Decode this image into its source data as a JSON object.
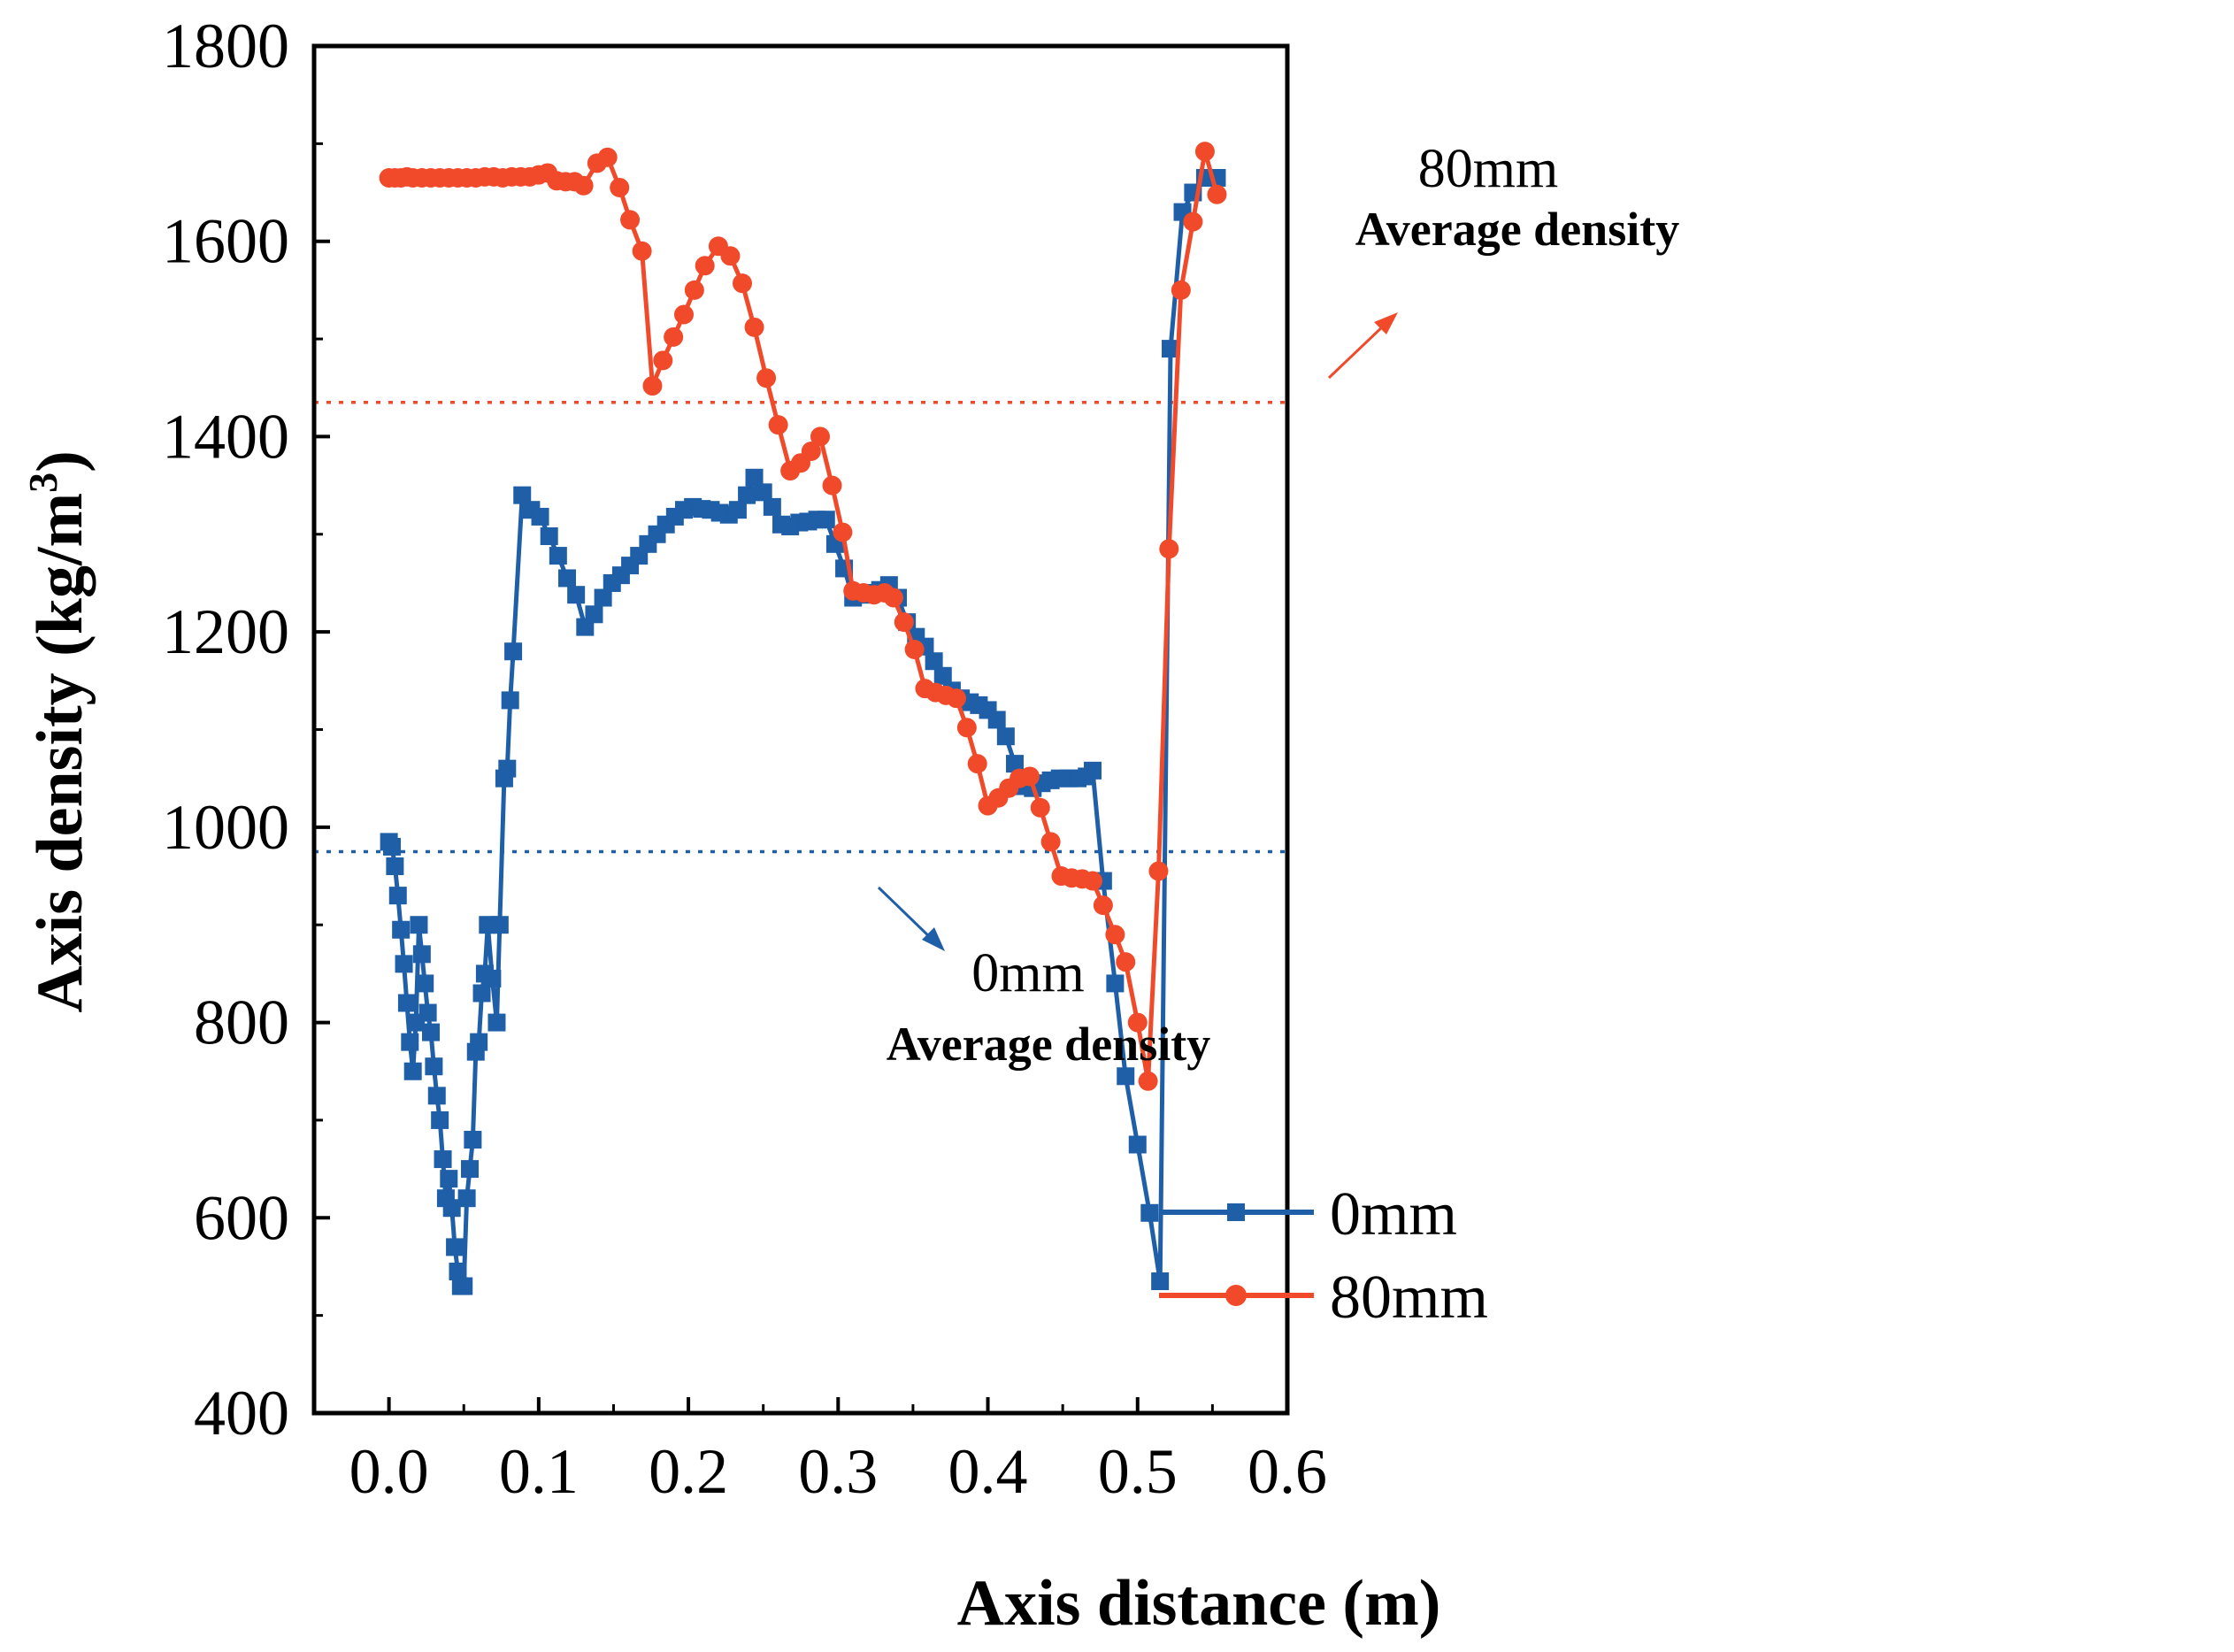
{
  "chart_data": {
    "type": "line",
    "xlabel": "Axis distance (m)",
    "ylabel_main": "Axis density (kg/m",
    "ylabel_sup": "3",
    "ylabel_close": ")",
    "xlim": [
      -0.05,
      0.6
    ],
    "ylim": [
      400,
      1800
    ],
    "x_ticks": [
      0.0,
      0.1,
      0.2,
      0.3,
      0.4,
      0.5,
      0.6
    ],
    "x_tick_labels": [
      "0.0",
      "0.1",
      "0.2",
      "0.3",
      "0.4",
      "0.5",
      "0.6"
    ],
    "y_ticks": [
      400,
      600,
      800,
      1000,
      1200,
      1400,
      1600,
      1800
    ],
    "y_tick_labels": [
      "400",
      "600",
      "800",
      "1000",
      "1200",
      "1400",
      "1600",
      "1800"
    ],
    "legend_position": "bottom-center",
    "series": [
      {
        "name": "0mm",
        "color": "#1f5fa8",
        "marker": "square",
        "points": [
          [
            0.0,
            985
          ],
          [
            0.002,
            980
          ],
          [
            0.004,
            960
          ],
          [
            0.006,
            930
          ],
          [
            0.008,
            895
          ],
          [
            0.01,
            860
          ],
          [
            0.012,
            820
          ],
          [
            0.014,
            780
          ],
          [
            0.016,
            750
          ],
          [
            0.018,
            800
          ],
          [
            0.02,
            900
          ],
          [
            0.022,
            870
          ],
          [
            0.024,
            840
          ],
          [
            0.026,
            810
          ],
          [
            0.028,
            790
          ],
          [
            0.03,
            755
          ],
          [
            0.032,
            725
          ],
          [
            0.034,
            700
          ],
          [
            0.036,
            660
          ],
          [
            0.038,
            620
          ],
          [
            0.04,
            640
          ],
          [
            0.042,
            610
          ],
          [
            0.044,
            570
          ],
          [
            0.046,
            545
          ],
          [
            0.048,
            530
          ],
          [
            0.05,
            530
          ],
          [
            0.052,
            620
          ],
          [
            0.054,
            650
          ],
          [
            0.056,
            680
          ],
          [
            0.058,
            770
          ],
          [
            0.06,
            780
          ],
          [
            0.062,
            830
          ],
          [
            0.064,
            850
          ],
          [
            0.066,
            900
          ],
          [
            0.069,
            845
          ],
          [
            0.072,
            800
          ],
          [
            0.074,
            900
          ],
          [
            0.077,
            1050
          ],
          [
            0.079,
            1060
          ],
          [
            0.081,
            1130
          ],
          [
            0.083,
            1180
          ],
          [
            0.089,
            1340
          ],
          [
            0.095,
            1325
          ],
          [
            0.101,
            1318
          ],
          [
            0.107,
            1298
          ],
          [
            0.113,
            1278
          ],
          [
            0.119,
            1255
          ],
          [
            0.125,
            1238
          ],
          [
            0.131,
            1205
          ],
          [
            0.137,
            1218
          ],
          [
            0.143,
            1235
          ],
          [
            0.149,
            1250
          ],
          [
            0.155,
            1258
          ],
          [
            0.161,
            1268
          ],
          [
            0.167,
            1278
          ],
          [
            0.173,
            1290
          ],
          [
            0.179,
            1300
          ],
          [
            0.185,
            1310
          ],
          [
            0.191,
            1318
          ],
          [
            0.197,
            1325
          ],
          [
            0.203,
            1328
          ],
          [
            0.209,
            1326
          ],
          [
            0.215,
            1325
          ],
          [
            0.221,
            1322
          ],
          [
            0.227,
            1320
          ],
          [
            0.233,
            1325
          ],
          [
            0.239,
            1340
          ],
          [
            0.244,
            1358
          ],
          [
            0.25,
            1343
          ],
          [
            0.256,
            1328
          ],
          [
            0.262,
            1310
          ],
          [
            0.268,
            1308
          ],
          [
            0.274,
            1312
          ],
          [
            0.28,
            1313
          ],
          [
            0.286,
            1315
          ],
          [
            0.292,
            1315
          ],
          [
            0.298,
            1290
          ],
          [
            0.304,
            1265
          ],
          [
            0.31,
            1235
          ],
          [
            0.316,
            1238
          ],
          [
            0.322,
            1240
          ],
          [
            0.328,
            1243
          ],
          [
            0.334,
            1248
          ],
          [
            0.34,
            1235
          ],
          [
            0.346,
            1210
          ],
          [
            0.352,
            1195
          ],
          [
            0.358,
            1185
          ],
          [
            0.364,
            1170
          ],
          [
            0.37,
            1155
          ],
          [
            0.376,
            1140
          ],
          [
            0.382,
            1132
          ],
          [
            0.388,
            1128
          ],
          [
            0.394,
            1125
          ],
          [
            0.4,
            1120
          ],
          [
            0.406,
            1110
          ],
          [
            0.412,
            1093
          ],
          [
            0.418,
            1065
          ],
          [
            0.424,
            1042
          ],
          [
            0.43,
            1040
          ],
          [
            0.436,
            1045
          ],
          [
            0.442,
            1048
          ],
          [
            0.448,
            1050
          ],
          [
            0.454,
            1050
          ],
          [
            0.46,
            1050
          ],
          [
            0.466,
            1052
          ],
          [
            0.47,
            1058
          ],
          [
            0.477,
            945
          ],
          [
            0.485,
            840
          ],
          [
            0.492,
            745
          ],
          [
            0.5,
            675
          ],
          [
            0.508,
            605
          ],
          [
            0.515,
            535
          ],
          [
            0.522,
            1490
          ],
          [
            0.53,
            1630
          ],
          [
            0.537,
            1650
          ],
          [
            0.545,
            1665
          ],
          [
            0.553,
            1665
          ]
        ]
      },
      {
        "name": "80mm",
        "color": "#f04a2a",
        "marker": "circle",
        "points": [
          [
            0.0,
            1665
          ],
          [
            0.004,
            1665
          ],
          [
            0.008,
            1665
          ],
          [
            0.012,
            1666
          ],
          [
            0.016,
            1665
          ],
          [
            0.022,
            1665
          ],
          [
            0.028,
            1665
          ],
          [
            0.034,
            1665
          ],
          [
            0.04,
            1665
          ],
          [
            0.046,
            1665
          ],
          [
            0.052,
            1665
          ],
          [
            0.058,
            1665
          ],
          [
            0.064,
            1666
          ],
          [
            0.07,
            1666
          ],
          [
            0.076,
            1665
          ],
          [
            0.082,
            1666
          ],
          [
            0.088,
            1666
          ],
          [
            0.094,
            1666
          ],
          [
            0.1,
            1668
          ],
          [
            0.106,
            1670
          ],
          [
            0.112,
            1662
          ],
          [
            0.118,
            1661
          ],
          [
            0.124,
            1661
          ],
          [
            0.13,
            1657
          ],
          [
            0.139,
            1680
          ],
          [
            0.146,
            1686
          ],
          [
            0.154,
            1655
          ],
          [
            0.161,
            1622
          ],
          [
            0.169,
            1590
          ],
          [
            0.176,
            1452
          ],
          [
            0.183,
            1478
          ],
          [
            0.19,
            1502
          ],
          [
            0.197,
            1525
          ],
          [
            0.204,
            1550
          ],
          [
            0.211,
            1575
          ],
          [
            0.22,
            1595
          ],
          [
            0.228,
            1585
          ],
          [
            0.236,
            1557
          ],
          [
            0.244,
            1512
          ],
          [
            0.252,
            1460
          ],
          [
            0.26,
            1412
          ],
          [
            0.268,
            1365
          ],
          [
            0.275,
            1373
          ],
          [
            0.282,
            1385
          ],
          [
            0.288,
            1400
          ],
          [
            0.296,
            1350
          ],
          [
            0.303,
            1302
          ],
          [
            0.31,
            1242
          ],
          [
            0.317,
            1240
          ],
          [
            0.324,
            1238
          ],
          [
            0.331,
            1240
          ],
          [
            0.337,
            1235
          ],
          [
            0.344,
            1210
          ],
          [
            0.351,
            1182
          ],
          [
            0.358,
            1142
          ],
          [
            0.365,
            1138
          ],
          [
            0.372,
            1135
          ],
          [
            0.379,
            1132
          ],
          [
            0.386,
            1102
          ],
          [
            0.393,
            1065
          ],
          [
            0.4,
            1022
          ],
          [
            0.407,
            1030
          ],
          [
            0.414,
            1040
          ],
          [
            0.421,
            1050
          ],
          [
            0.428,
            1052
          ],
          [
            0.435,
            1020
          ],
          [
            0.442,
            985
          ],
          [
            0.449,
            950
          ],
          [
            0.456,
            948
          ],
          [
            0.463,
            947
          ],
          [
            0.47,
            945
          ],
          [
            0.477,
            920
          ],
          [
            0.485,
            890
          ],
          [
            0.492,
            862
          ],
          [
            0.5,
            800
          ],
          [
            0.507,
            740
          ],
          [
            0.514,
            955
          ],
          [
            0.521,
            1285
          ],
          [
            0.529,
            1550
          ],
          [
            0.537,
            1620
          ],
          [
            0.545,
            1692
          ],
          [
            0.553,
            1648
          ]
        ]
      }
    ],
    "reference_lines": [
      {
        "name": "80mm average density",
        "y": 1435,
        "color": "#f04a2a",
        "value_label": "80mm",
        "text_label": "Average density"
      },
      {
        "name": "0mm average density",
        "y": 975,
        "color": "#1f5fa8",
        "value_label": "0mm",
        "text_label": "Average density"
      }
    ]
  }
}
